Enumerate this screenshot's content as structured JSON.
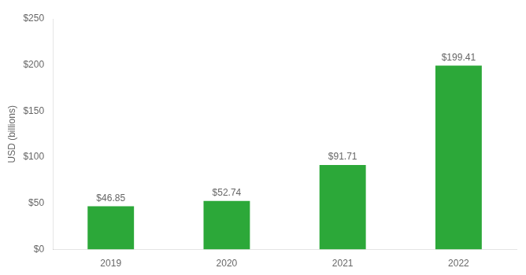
{
  "chart_data": {
    "type": "bar",
    "categories": [
      "2019",
      "2020",
      "2021",
      "2022"
    ],
    "values": [
      46.85,
      52.74,
      91.71,
      199.41
    ],
    "value_labels": [
      "$46.85",
      "$52.74",
      "$91.71",
      "$199.41"
    ],
    "data_labels": true,
    "color": "#2ca839",
    "ylabel": "USD (billions)",
    "ylim": [
      0,
      250
    ],
    "yticks": [
      {
        "value": 0,
        "label": "$0"
      },
      {
        "value": 50,
        "label": "$50"
      },
      {
        "value": 100,
        "label": "$100"
      },
      {
        "value": 150,
        "label": "$150"
      },
      {
        "value": 200,
        "label": "$200"
      },
      {
        "value": 250,
        "label": "$250"
      }
    ],
    "grid": false
  }
}
